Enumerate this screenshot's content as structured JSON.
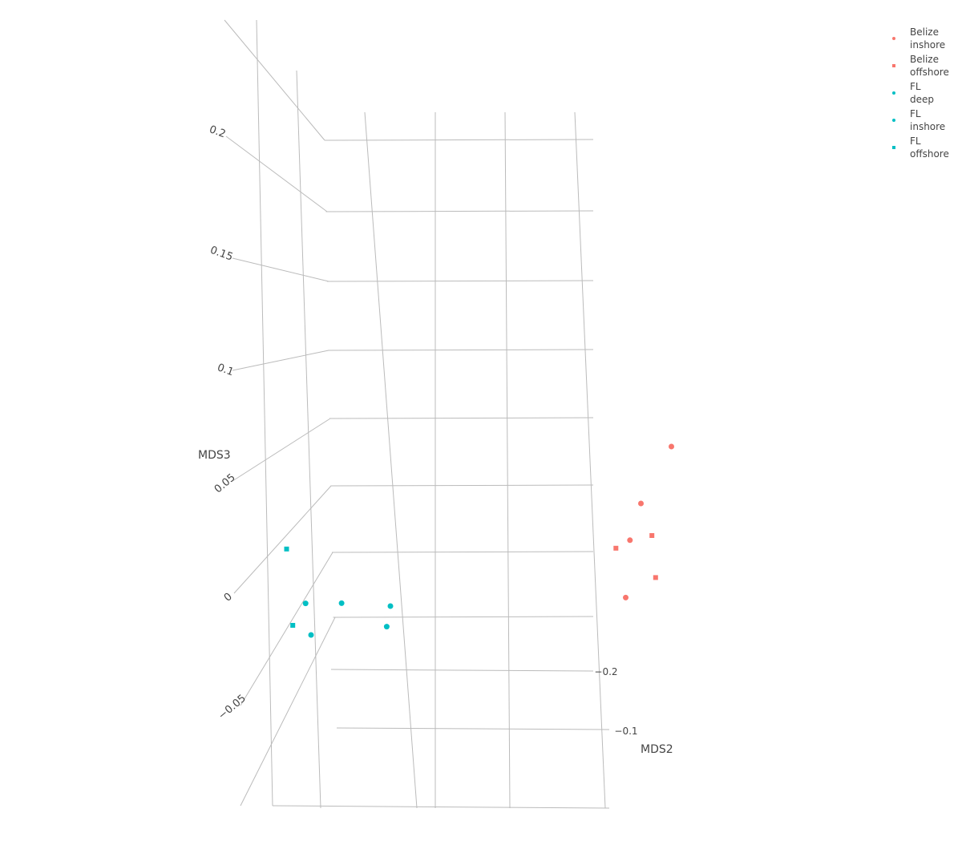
{
  "colors": {
    "belize": "#f8766d",
    "fl": "#00bfc4",
    "axis_line": "#bbbbbb",
    "text": "#444444"
  },
  "chart_data": {
    "type": "scatter",
    "projection": "3d",
    "zlabel": "MDS3",
    "ylabel": "MDS2",
    "z_ticks": [
      "0.2",
      "0.15",
      "0.1",
      "0.05",
      "0",
      "−0.05"
    ],
    "y_ticks": [
      "−0.2",
      "−0.1"
    ],
    "legend_position": "top-right",
    "grid": true,
    "series": [
      {
        "name": "Belize inshore",
        "legend_lines": [
          "Belize",
          "inshore"
        ],
        "color": "#f8766d",
        "marker": "circle",
        "points": [
          [
            0.35,
            0.2,
            0.175
          ],
          [
            0.35,
            0.1,
            0.1
          ],
          [
            0.35,
            0.05,
            0.01
          ],
          [
            0.34,
            0.08,
            0.065
          ]
        ]
      },
      {
        "name": "Belize offshore",
        "legend_lines": [
          "Belize",
          "offshore"
        ],
        "color": "#f8766d",
        "marker": "square",
        "points": [
          [
            0.36,
            0.12,
            0.08
          ],
          [
            0.38,
            0.1,
            0.04
          ],
          [
            0.33,
            0.05,
            0.05
          ]
        ]
      },
      {
        "name": "FL deep",
        "legend_lines": [
          "FL",
          "deep"
        ],
        "color": "#00bfc4",
        "marker": "circle",
        "points": [
          [
            -0.1,
            0.0,
            0.0
          ],
          [
            -0.12,
            0.02,
            -0.01
          ]
        ]
      },
      {
        "name": "FL inshore",
        "legend_lines": [
          "FL",
          "inshore"
        ],
        "color": "#00bfc4",
        "marker": "circle",
        "points": [
          [
            -0.2,
            -0.1,
            -0.05
          ],
          [
            -0.18,
            -0.15,
            -0.04
          ],
          [
            -0.15,
            -0.08,
            -0.02
          ]
        ]
      },
      {
        "name": "FL offshore",
        "legend_lines": [
          "FL",
          "offshore"
        ],
        "color": "#00bfc4",
        "marker": "square",
        "points": [
          [
            -0.2,
            -0.16,
            -0.06
          ],
          [
            -0.25,
            -0.1,
            0.02
          ]
        ]
      }
    ]
  }
}
